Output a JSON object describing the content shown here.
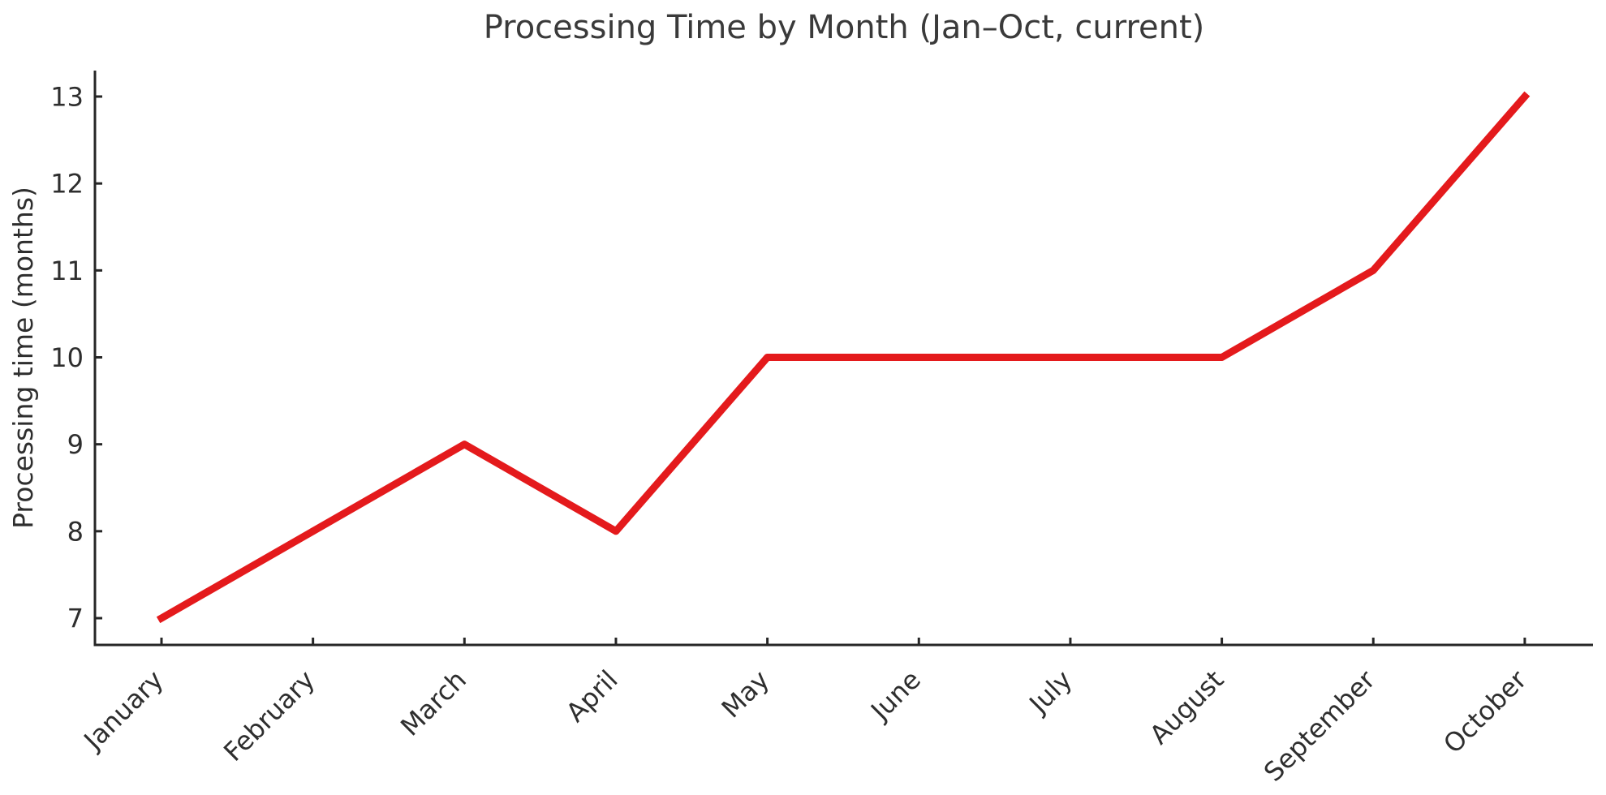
{
  "page": {
    "background": "#ffffff"
  },
  "chart_data": {
    "type": "line",
    "title": "Processing Time by Month (Jan–Oct, current)",
    "xlabel": "",
    "ylabel": "Processing time (months)",
    "categories": [
      "January",
      "February",
      "March",
      "April",
      "May",
      "June",
      "July",
      "August",
      "September",
      "October"
    ],
    "series": [
      {
        "name": "Processing time",
        "color": "#e41a1c",
        "line_width": 9,
        "values": [
          7,
          8,
          9,
          8,
          10,
          10,
          10,
          10,
          11,
          13
        ]
      }
    ],
    "yticks": [
      7,
      8,
      9,
      10,
      11,
      12,
      13
    ],
    "ylim": [
      6.7,
      13.3
    ],
    "grid": false,
    "legend": "none",
    "spines": [
      "left",
      "bottom"
    ],
    "tick_direction": "in",
    "x_tick_rotation_deg": 45,
    "axis_color": "#262626",
    "text_color": "#2e2e2e"
  }
}
